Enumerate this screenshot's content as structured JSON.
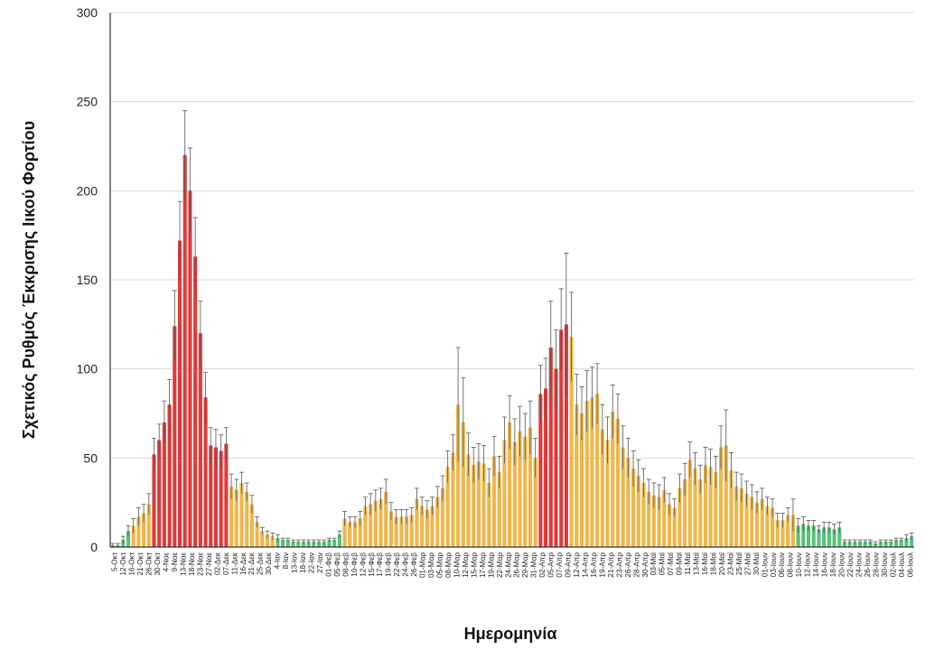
{
  "chart_data": {
    "type": "bar",
    "xlabel": "Ημερομηνία",
    "ylabel": "Σχετικός Ρυθμός Έκκρισης Ιικού Φορτίου",
    "ylim": [
      0,
      300
    ],
    "yticks": [
      0,
      50,
      100,
      150,
      200,
      250,
      300
    ],
    "grid": true,
    "error_bars": true,
    "colors": {
      "low": "#5bbf7a",
      "medium": "#f0b64a",
      "high": "#e03a3a",
      "error": "#555555",
      "axis": "#333333",
      "grid": "#d9d9d9"
    },
    "tick_labels": [
      "5-Οκτ",
      "12-Οκτ",
      "16-Οκτ",
      "21-Οκτ",
      "26-Οκτ",
      "30-Οκτ",
      "4-Νοε",
      "9-Νοε",
      "13-Νοε",
      "18-Νοε",
      "23-Νοε",
      "27-Νοε",
      "02-Δεκ",
      "07-Δεκ",
      "11-Δεκ",
      "16-Δεκ",
      "21-Δεκ",
      "25-Δεκ",
      "30-Δεκ",
      "4-Ιαν",
      "8-Ιαν",
      "13-Ιαν",
      "18-Ιαν",
      "22-Ιαν",
      "27-Ιαν",
      "01-Φεβ",
      "05-Φεβ",
      "08-Φεβ",
      "10-Φεβ",
      "12-Φεβ",
      "15-Φεβ",
      "17-Φεβ",
      "19-Φεβ",
      "22-Φεβ",
      "24-Φεβ",
      "26-Φεβ",
      "01-Μαρ",
      "03-Μαρ",
      "05-Μαρ",
      "08-Μαρ",
      "10-Μαρ",
      "12-Μαρ",
      "15-Μαρ",
      "17-Μαρ",
      "19-Μαρ",
      "22-Μαρ",
      "24-Μαρ",
      "26-Μαρ",
      "29-Μαρ",
      "31-Μαρ",
      "02-Απρ",
      "05-Απρ",
      "07-Απρ",
      "09-Απρ",
      "12-Απρ",
      "14-Απρ",
      "16-Απρ",
      "19-Απρ",
      "21-Απρ",
      "23-Απρ",
      "26-Απρ",
      "28-Απρ",
      "30-Απρ",
      "03-Μαϊ",
      "05-Μαϊ",
      "07-Μαϊ",
      "09-Μαϊ",
      "11-Μαϊ",
      "13-Μαϊ",
      "16-Μαϊ",
      "18-Μαϊ",
      "20-Μαϊ",
      "23-Μαϊ",
      "25-Μαϊ",
      "27-Μαϊ",
      "30-Μαϊ",
      "01-Ιουν",
      "03-Ιουν",
      "06-Ιουν",
      "08-Ιουν",
      "10-Ιουν",
      "12-Ιουν",
      "14-Ιουν",
      "16-Ιουν",
      "18-Ιουν",
      "20-Ιουν",
      "22-Ιουν",
      "24-Ιουν",
      "26-Ιουν",
      "28-Ιουν",
      "30-Ιουν",
      "02-Ιουλ",
      "04-Ιουλ",
      "06-Ιουλ"
    ],
    "series": [
      {
        "values": [
          1,
          1,
          4,
          9,
          12,
          17,
          19,
          24,
          52,
          60,
          70,
          80,
          124,
          172,
          220,
          200,
          163,
          120,
          84,
          57,
          56,
          54,
          58,
          34,
          32,
          36,
          31,
          24,
          14,
          9,
          7,
          6,
          5,
          4,
          4,
          3,
          3,
          3,
          3,
          3,
          3,
          3,
          4,
          4,
          7,
          16,
          14,
          14,
          16,
          23,
          24,
          26,
          27,
          31,
          20,
          17,
          17,
          17,
          18,
          27,
          23,
          21,
          23,
          28,
          33,
          45,
          53,
          80,
          70,
          52,
          46,
          48,
          47,
          36,
          51,
          42,
          60,
          70,
          59,
          65,
          62,
          67,
          50,
          86,
          89,
          112,
          100,
          122,
          125,
          118,
          80,
          75,
          82,
          84,
          86,
          66,
          60,
          76,
          72,
          56,
          50,
          44,
          40,
          36,
          31,
          29,
          28,
          32,
          24,
          22,
          33,
          38,
          49,
          44,
          38,
          46,
          45,
          42,
          56,
          57,
          43,
          34,
          33,
          30,
          28,
          25,
          27,
          23,
          22,
          15,
          15,
          18,
          18,
          12,
          13,
          12,
          12,
          10,
          11,
          11,
          10,
          11,
          3,
          3,
          3,
          3,
          3,
          3,
          2,
          3,
          3,
          3,
          4,
          4,
          5,
          6
        ],
        "errors": [
          1,
          1,
          2,
          3,
          4,
          5,
          5,
          6,
          9,
          9,
          12,
          14,
          20,
          22,
          25,
          24,
          22,
          18,
          14,
          10,
          10,
          9,
          9,
          7,
          6,
          6,
          5,
          5,
          3,
          2,
          2,
          2,
          2,
          1,
          1,
          1,
          1,
          1,
          1,
          1,
          1,
          1,
          1,
          1,
          2,
          4,
          3,
          3,
          4,
          5,
          6,
          6,
          6,
          7,
          5,
          4,
          4,
          4,
          4,
          6,
          5,
          5,
          5,
          6,
          7,
          9,
          10,
          32,
          25,
          12,
          10,
          10,
          10,
          8,
          11,
          9,
          13,
          15,
          13,
          14,
          13,
          15,
          11,
          16,
          17,
          26,
          22,
          23,
          40,
          25,
          17,
          15,
          17,
          17,
          17,
          14,
          13,
          15,
          14,
          12,
          11,
          10,
          9,
          8,
          7,
          7,
          7,
          7,
          6,
          5,
          8,
          9,
          10,
          9,
          8,
          10,
          10,
          9,
          12,
          20,
          10,
          8,
          8,
          7,
          7,
          6,
          6,
          5,
          5,
          4,
          4,
          4,
          9,
          4,
          4,
          3,
          3,
          2,
          3,
          3,
          3,
          3,
          1,
          1,
          1,
          1,
          1,
          1,
          1,
          1,
          1,
          1,
          1,
          1,
          2,
          2
        ],
        "levels": [
          "g",
          "g",
          "g",
          "g",
          "o",
          "o",
          "o",
          "o",
          "r",
          "r",
          "r",
          "r",
          "r",
          "r",
          "r",
          "r",
          "r",
          "r",
          "r",
          "r",
          "r",
          "r",
          "r",
          "o",
          "o",
          "o",
          "o",
          "o",
          "o",
          "o",
          "o",
          "o",
          "g",
          "g",
          "g",
          "g",
          "g",
          "g",
          "g",
          "g",
          "g",
          "g",
          "g",
          "g",
          "g",
          "o",
          "o",
          "o",
          "o",
          "o",
          "o",
          "o",
          "o",
          "o",
          "o",
          "o",
          "o",
          "o",
          "o",
          "o",
          "o",
          "o",
          "o",
          "o",
          "o",
          "o",
          "o",
          "o",
          "o",
          "o",
          "o",
          "o",
          "o",
          "o",
          "o",
          "o",
          "o",
          "o",
          "o",
          "o",
          "o",
          "o",
          "o",
          "r",
          "r",
          "r",
          "r",
          "r",
          "r",
          "o",
          "o",
          "o",
          "o",
          "o",
          "o",
          "o",
          "o",
          "o",
          "o",
          "o",
          "o",
          "o",
          "o",
          "o",
          "o",
          "o",
          "o",
          "o",
          "o",
          "o",
          "o",
          "o",
          "o",
          "o",
          "o",
          "o",
          "o",
          "o",
          "o",
          "o",
          "o",
          "o",
          "o",
          "o",
          "o",
          "o",
          "o",
          "o",
          "o",
          "o",
          "o",
          "o",
          "o",
          "g",
          "g",
          "g",
          "g",
          "g",
          "g",
          "g",
          "g",
          "g",
          "g",
          "g",
          "g",
          "g",
          "g",
          "g",
          "g",
          "g",
          "g",
          "g",
          "g",
          "g",
          "g",
          "g"
        ]
      }
    ]
  }
}
